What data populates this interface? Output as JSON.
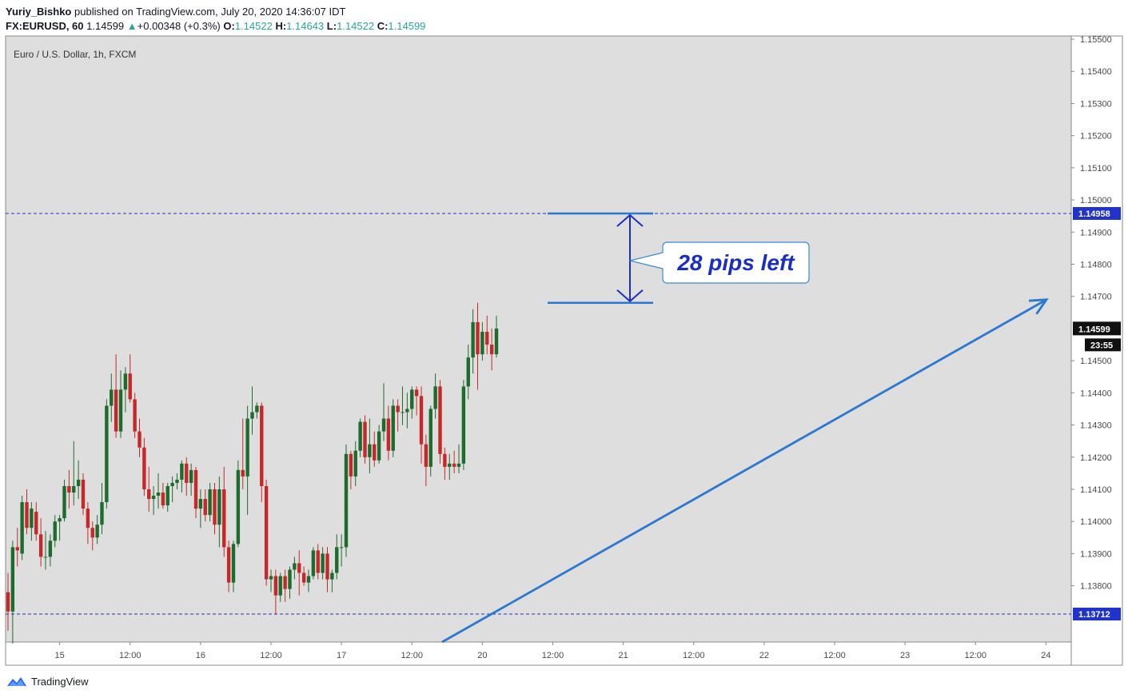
{
  "header": {
    "user": "Yuriy_Bishko",
    "published": "published on TradingView.com, July 20, 2020 14:36:07 IDT",
    "symbol": "FX:EURUSD, 60",
    "last": "1.14599",
    "change_arrow": "▲",
    "change": "+0.00348 (+0.3%)",
    "o_label": "O:",
    "o_value": "1.14522",
    "h_label": "H:",
    "h_value": "1.14643",
    "l_label": "L:",
    "l_value": "1.14522",
    "c_label": "C:",
    "c_value": "1.14599"
  },
  "footer": {
    "brand": "TradingView",
    "logo_icon": "tradingview-logo-icon"
  },
  "colors": {
    "background": "#dedede",
    "bull": "#1e6b2e",
    "bear": "#c62828",
    "level_line": "#2233cc",
    "trend_arrow": "#2a78d0",
    "measure": "#1a2fbf",
    "callout_border": "#3a8ad8"
  },
  "chart_data": {
    "type": "candlestick",
    "title": "Euro / U.S. Dollar, 1h, FXCM",
    "x_ticks": [
      "15",
      "12:00",
      "16",
      "12:00",
      "17",
      "12:00",
      "20",
      "12:00",
      "21",
      "12:00",
      "22",
      "12:00",
      "23",
      "12:00",
      "24"
    ],
    "y_ticks": [
      "1.15500",
      "1.15400",
      "1.15300",
      "1.15200",
      "1.15100",
      "1.15000",
      "1.14900",
      "1.14800",
      "1.14700",
      "1.14500",
      "1.14400",
      "1.14300",
      "1.14200",
      "1.14100",
      "1.14000",
      "1.13900",
      "1.13800"
    ],
    "ylim": [
      1.13625,
      1.1551
    ],
    "levels": [
      {
        "price": 1.14958,
        "label": "1.14958"
      },
      {
        "price": 1.13712,
        "label": "1.13712"
      }
    ],
    "last_price": {
      "price": 1.14599,
      "label": "1.14599",
      "countdown": "23:55"
    },
    "annotation": {
      "text": "28 pips left",
      "from_price": 1.14958,
      "to_price": 1.1468
    },
    "trend_arrow": {
      "from": [
        61,
        1.13625
      ],
      "to": [
        144,
        1.1469
      ]
    },
    "candles": [
      [
        1.1378,
        1.1384,
        1.1366,
        1.1372
      ],
      [
        1.1372,
        1.1394,
        1.1362,
        1.1392
      ],
      [
        1.1392,
        1.1398,
        1.1386,
        1.1391
      ],
      [
        1.139,
        1.1408,
        1.1388,
        1.1406
      ],
      [
        1.1406,
        1.141,
        1.1396,
        1.1398
      ],
      [
        1.1398,
        1.1406,
        1.1394,
        1.1404
      ],
      [
        1.1403,
        1.1406,
        1.1394,
        1.1396
      ],
      [
        1.1396,
        1.1401,
        1.1386,
        1.1389
      ],
      [
        1.1389,
        1.1397,
        1.1385,
        1.1389
      ],
      [
        1.1389,
        1.1396,
        1.1386,
        1.1394
      ],
      [
        1.1394,
        1.1402,
        1.1392,
        1.14
      ],
      [
        1.14,
        1.1402,
        1.1394,
        1.1401
      ],
      [
        1.1401,
        1.1413,
        1.14,
        1.1411
      ],
      [
        1.1411,
        1.1416,
        1.1404,
        1.1409
      ],
      [
        1.1409,
        1.1425,
        1.1405,
        1.1411
      ],
      [
        1.1411,
        1.1419,
        1.1407,
        1.1413
      ],
      [
        1.1413,
        1.1415,
        1.1402,
        1.1404
      ],
      [
        1.1404,
        1.1406,
        1.1393,
        1.1398
      ],
      [
        1.1398,
        1.14,
        1.1391,
        1.1395
      ],
      [
        1.1395,
        1.1402,
        1.1393,
        1.1399
      ],
      [
        1.1399,
        1.1412,
        1.1396,
        1.1406
      ],
      [
        1.1406,
        1.1438,
        1.1404,
        1.1436
      ],
      [
        1.1436,
        1.1446,
        1.1431,
        1.1441
      ],
      [
        1.1441,
        1.1452,
        1.1426,
        1.1428
      ],
      [
        1.1428,
        1.1447,
        1.1426,
        1.1441
      ],
      [
        1.1441,
        1.1448,
        1.1434,
        1.1446
      ],
      [
        1.1446,
        1.1452,
        1.1437,
        1.1438
      ],
      [
        1.1438,
        1.144,
        1.1426,
        1.1428
      ],
      [
        1.1428,
        1.1432,
        1.142,
        1.1423
      ],
      [
        1.1423,
        1.1426,
        1.1408,
        1.141
      ],
      [
        1.141,
        1.1417,
        1.1403,
        1.1407
      ],
      [
        1.1407,
        1.1411,
        1.1402,
        1.1408
      ],
      [
        1.1408,
        1.1415,
        1.1404,
        1.1409
      ],
      [
        1.1409,
        1.1412,
        1.1404,
        1.1405
      ],
      [
        1.1405,
        1.1412,
        1.1403,
        1.1411
      ],
      [
        1.1411,
        1.1414,
        1.1406,
        1.1412
      ],
      [
        1.1412,
        1.1415,
        1.141,
        1.1413
      ],
      [
        1.1413,
        1.1419,
        1.1409,
        1.1418
      ],
      [
        1.1418,
        1.142,
        1.1408,
        1.1412
      ],
      [
        1.1412,
        1.1418,
        1.1408,
        1.1416
      ],
      [
        1.1416,
        1.1417,
        1.1401,
        1.1404
      ],
      [
        1.1404,
        1.141,
        1.1398,
        1.1407
      ],
      [
        1.1407,
        1.141,
        1.14,
        1.1402
      ],
      [
        1.1402,
        1.1412,
        1.14,
        1.141
      ],
      [
        1.141,
        1.1412,
        1.1396,
        1.1399
      ],
      [
        1.1399,
        1.1414,
        1.1392,
        1.141
      ],
      [
        1.141,
        1.1417,
        1.1389,
        1.1392
      ],
      [
        1.1392,
        1.1394,
        1.1378,
        1.1381
      ],
      [
        1.1381,
        1.1394,
        1.1378,
        1.1393
      ],
      [
        1.1393,
        1.1419,
        1.1392,
        1.1416
      ],
      [
        1.1416,
        1.1432,
        1.141,
        1.1414
      ],
      [
        1.1414,
        1.1436,
        1.1402,
        1.1432
      ],
      [
        1.1432,
        1.1442,
        1.1427,
        1.1434
      ],
      [
        1.1434,
        1.1437,
        1.1432,
        1.1436
      ],
      [
        1.1436,
        1.1437,
        1.1406,
        1.1411
      ],
      [
        1.1411,
        1.1413,
        1.138,
        1.1382
      ],
      [
        1.1382,
        1.1385,
        1.1378,
        1.1383
      ],
      [
        1.1383,
        1.1385,
        1.1371,
        1.1377
      ],
      [
        1.1377,
        1.1384,
        1.1375,
        1.1383
      ],
      [
        1.1383,
        1.1385,
        1.1375,
        1.1379
      ],
      [
        1.1379,
        1.1386,
        1.1376,
        1.1385
      ],
      [
        1.1385,
        1.1389,
        1.1382,
        1.1387
      ],
      [
        1.1387,
        1.1391,
        1.1377,
        1.1384
      ],
      [
        1.1384,
        1.1386,
        1.138,
        1.1381
      ],
      [
        1.1381,
        1.1385,
        1.1378,
        1.1383
      ],
      [
        1.1383,
        1.1392,
        1.1382,
        1.1391
      ],
      [
        1.1391,
        1.1393,
        1.1382,
        1.1384
      ],
      [
        1.1384,
        1.1392,
        1.1382,
        1.139
      ],
      [
        1.139,
        1.1392,
        1.1378,
        1.1382
      ],
      [
        1.1382,
        1.1385,
        1.1378,
        1.1384
      ],
      [
        1.1384,
        1.1396,
        1.1382,
        1.1392
      ],
      [
        1.1392,
        1.1396,
        1.1386,
        1.1392
      ],
      [
        1.1392,
        1.1424,
        1.1389,
        1.1421
      ],
      [
        1.1421,
        1.1422,
        1.141,
        1.1414
      ],
      [
        1.1414,
        1.1425,
        1.1411,
        1.1422
      ],
      [
        1.1422,
        1.1432,
        1.142,
        1.1431
      ],
      [
        1.1431,
        1.1433,
        1.1418,
        1.142
      ],
      [
        1.142,
        1.1432,
        1.1415,
        1.1424
      ],
      [
        1.1424,
        1.1428,
        1.1417,
        1.1419
      ],
      [
        1.1419,
        1.143,
        1.1418,
        1.1428
      ],
      [
        1.1428,
        1.1443,
        1.1425,
        1.1432
      ],
      [
        1.1432,
        1.1436,
        1.1419,
        1.1422
      ],
      [
        1.1422,
        1.1438,
        1.142,
        1.1436
      ],
      [
        1.1436,
        1.1438,
        1.1428,
        1.1434
      ],
      [
        1.1434,
        1.1442,
        1.143,
        1.1434
      ],
      [
        1.1434,
        1.144,
        1.1429,
        1.1435
      ],
      [
        1.1435,
        1.1442,
        1.1432,
        1.1441
      ],
      [
        1.1441,
        1.1442,
        1.1433,
        1.1439
      ],
      [
        1.1439,
        1.1442,
        1.1418,
        1.1424
      ],
      [
        1.1424,
        1.1427,
        1.1411,
        1.1417
      ],
      [
        1.1417,
        1.1436,
        1.1414,
        1.1435
      ],
      [
        1.1435,
        1.1446,
        1.1432,
        1.1442
      ],
      [
        1.1442,
        1.1444,
        1.1418,
        1.1421
      ],
      [
        1.1421,
        1.1423,
        1.1413,
        1.1417
      ],
      [
        1.1417,
        1.1421,
        1.1413,
        1.1418
      ],
      [
        1.1418,
        1.1422,
        1.1415,
        1.1417
      ],
      [
        1.1417,
        1.1424,
        1.1415,
        1.1418
      ],
      [
        1.1418,
        1.1444,
        1.1416,
        1.1442
      ],
      [
        1.1442,
        1.1455,
        1.1438,
        1.1451
      ],
      [
        1.1451,
        1.1466,
        1.1446,
        1.1462
      ],
      [
        1.1462,
        1.1468,
        1.1441,
        1.1452
      ],
      [
        1.1452,
        1.1462,
        1.145,
        1.1459
      ],
      [
        1.1459,
        1.1464,
        1.1452,
        1.1455
      ],
      [
        1.1455,
        1.146,
        1.1447,
        1.1452
      ],
      [
        1.1452,
        1.1464,
        1.1451,
        1.146
      ]
    ]
  }
}
